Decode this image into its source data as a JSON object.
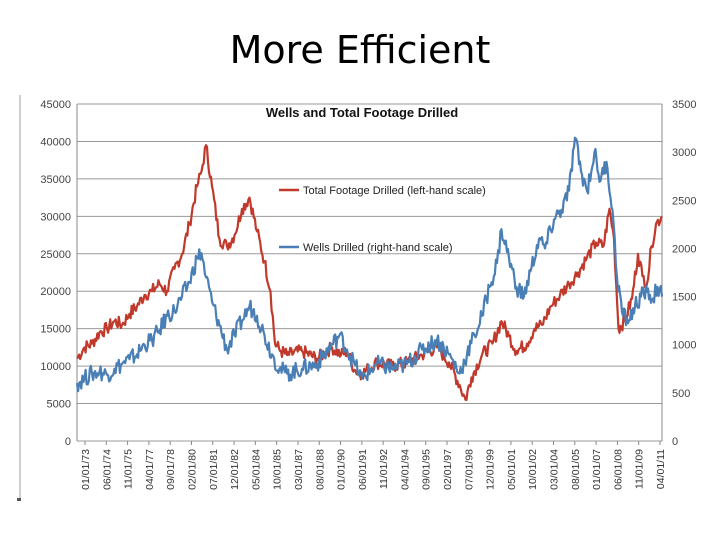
{
  "slide": {
    "title": "More Efficient"
  },
  "chart_data": {
    "type": "line",
    "title": "Wells and Total Footage Drilled",
    "x_tick_labels": [
      "01/01/73",
      "06/01/74",
      "11/01/75",
      "04/01/77",
      "09/01/78",
      "02/01/80",
      "07/01/81",
      "12/01/82",
      "05/01/84",
      "10/01/85",
      "03/01/87",
      "08/01/88",
      "01/01/90",
      "06/01/91",
      "11/01/92",
      "04/01/94",
      "09/01/95",
      "02/01/97",
      "07/01/98",
      "12/01/99",
      "05/01/01",
      "10/01/02",
      "03/01/04",
      "08/01/05",
      "01/01/07",
      "06/01/08",
      "11/01/09",
      "04/01/11"
    ],
    "x_range": [
      1973.0,
      2012.0
    ],
    "left_axis": {
      "range": [
        0,
        45000
      ],
      "ticks": [
        "0",
        "5000",
        "10000",
        "15000",
        "20000",
        "25000",
        "30000",
        "35000",
        "40000",
        "45000"
      ]
    },
    "right_axis": {
      "range": [
        0,
        3500
      ],
      "ticks": [
        "0",
        "500",
        "1000",
        "1500",
        "2000",
        "2500",
        "3000",
        "3500"
      ]
    },
    "series": [
      {
        "name": "Total Footage Drilled (left-hand scale)",
        "axis": "left",
        "color": "#c0392b",
        "points": [
          [
            1973.0,
            11000
          ],
          [
            1973.5,
            12500
          ],
          [
            1974.0,
            13000
          ],
          [
            1974.5,
            14500
          ],
          [
            1975.0,
            15000
          ],
          [
            1975.5,
            16000
          ],
          [
            1976.0,
            15500
          ],
          [
            1976.5,
            17000
          ],
          [
            1977.0,
            18000
          ],
          [
            1977.5,
            19500
          ],
          [
            1978.0,
            20000
          ],
          [
            1978.5,
            21000
          ],
          [
            1979.0,
            20000
          ],
          [
            1979.5,
            23000
          ],
          [
            1980.0,
            25000
          ],
          [
            1980.5,
            29000
          ],
          [
            1981.0,
            34000
          ],
          [
            1981.3,
            36000
          ],
          [
            1981.6,
            39500
          ],
          [
            1982.0,
            34000
          ],
          [
            1982.5,
            27000
          ],
          [
            1983.0,
            26000
          ],
          [
            1983.5,
            27500
          ],
          [
            1984.0,
            31000
          ],
          [
            1984.5,
            32500
          ],
          [
            1985.0,
            28000
          ],
          [
            1985.5,
            24000
          ],
          [
            1985.9,
            20000
          ],
          [
            1986.2,
            13000
          ],
          [
            1986.6,
            12000
          ],
          [
            1987.0,
            11500
          ],
          [
            1988.0,
            12000
          ],
          [
            1989.0,
            11000
          ],
          [
            1990.0,
            12500
          ],
          [
            1990.6,
            11500
          ],
          [
            1991.0,
            12000
          ],
          [
            1991.5,
            9500
          ],
          [
            1992.0,
            9000
          ],
          [
            1993.0,
            10500
          ],
          [
            1994.0,
            10000
          ],
          [
            1995.0,
            10500
          ],
          [
            1996.0,
            11500
          ],
          [
            1997.0,
            12500
          ],
          [
            1997.8,
            10500
          ],
          [
            1998.5,
            7500
          ],
          [
            1998.9,
            5500
          ],
          [
            1999.3,
            8500
          ],
          [
            2000.0,
            11500
          ],
          [
            2000.7,
            13000
          ],
          [
            2001.3,
            16000
          ],
          [
            2001.8,
            14000
          ],
          [
            2002.3,
            12000
          ],
          [
            2003.0,
            13000
          ],
          [
            2003.5,
            15000
          ],
          [
            2004.0,
            15500
          ],
          [
            2004.6,
            18000
          ],
          [
            2005.2,
            19500
          ],
          [
            2005.8,
            21000
          ],
          [
            2006.4,
            22500
          ],
          [
            2007.0,
            24500
          ],
          [
            2007.6,
            26500
          ],
          [
            2008.1,
            26000
          ],
          [
            2008.5,
            31000
          ],
          [
            2008.8,
            27000
          ],
          [
            2009.1,
            15000
          ],
          [
            2009.5,
            16000
          ],
          [
            2010.0,
            19000
          ],
          [
            2010.4,
            25000
          ],
          [
            2010.7,
            22000
          ],
          [
            2011.0,
            21000
          ],
          [
            2011.3,
            26000
          ],
          [
            2011.6,
            29000
          ],
          [
            2012.0,
            30000
          ]
        ]
      },
      {
        "name": "Wells Drilled (right-hand scale)",
        "axis": "right",
        "color": "#4a7fb5",
        "points": [
          [
            1973.0,
            600
          ],
          [
            1973.5,
            650
          ],
          [
            1974.0,
            700
          ],
          [
            1974.5,
            720
          ],
          [
            1975.0,
            690
          ],
          [
            1975.5,
            750
          ],
          [
            1976.0,
            800
          ],
          [
            1976.5,
            850
          ],
          [
            1977.0,
            900
          ],
          [
            1977.5,
            1000
          ],
          [
            1978.0,
            1050
          ],
          [
            1978.5,
            1150
          ],
          [
            1979.0,
            1300
          ],
          [
            1979.5,
            1350
          ],
          [
            1980.0,
            1500
          ],
          [
            1980.5,
            1650
          ],
          [
            1981.0,
            1900
          ],
          [
            1981.3,
            1950
          ],
          [
            1981.6,
            1700
          ],
          [
            1982.0,
            1450
          ],
          [
            1982.5,
            1200
          ],
          [
            1983.0,
            950
          ],
          [
            1983.5,
            1100
          ],
          [
            1984.0,
            1250
          ],
          [
            1984.5,
            1400
          ],
          [
            1985.0,
            1300
          ],
          [
            1985.5,
            1100
          ],
          [
            1986.0,
            900
          ],
          [
            1986.5,
            750
          ],
          [
            1987.0,
            700
          ],
          [
            1988.0,
            750
          ],
          [
            1989.0,
            800
          ],
          [
            1990.0,
            1000
          ],
          [
            1990.5,
            1100
          ],
          [
            1991.0,
            950
          ],
          [
            1991.5,
            800
          ],
          [
            1992.0,
            650
          ],
          [
            1993.0,
            800
          ],
          [
            1994.0,
            750
          ],
          [
            1995.0,
            800
          ],
          [
            1996.0,
            950
          ],
          [
            1997.0,
            1050
          ],
          [
            1997.8,
            900
          ],
          [
            1998.5,
            700
          ],
          [
            1999.0,
            900
          ],
          [
            1999.5,
            1100
          ],
          [
            2000.0,
            1300
          ],
          [
            2000.5,
            1600
          ],
          [
            2001.0,
            1850
          ],
          [
            2001.3,
            2200
          ],
          [
            2001.8,
            1900
          ],
          [
            2002.3,
            1600
          ],
          [
            2002.8,
            1500
          ],
          [
            2003.3,
            1800
          ],
          [
            2003.8,
            2100
          ],
          [
            2004.2,
            2000
          ],
          [
            2004.8,
            2300
          ],
          [
            2005.3,
            2400
          ],
          [
            2005.8,
            2600
          ],
          [
            2006.2,
            3150
          ],
          [
            2006.6,
            2800
          ],
          [
            2007.0,
            2600
          ],
          [
            2007.5,
            3000
          ],
          [
            2007.9,
            2700
          ],
          [
            2008.3,
            2900
          ],
          [
            2008.7,
            2400
          ],
          [
            2009.0,
            1700
          ],
          [
            2009.4,
            1300
          ],
          [
            2009.8,
            1250
          ],
          [
            2010.2,
            1400
          ],
          [
            2010.6,
            1500
          ],
          [
            2011.0,
            1550
          ],
          [
            2011.4,
            1480
          ],
          [
            2011.7,
            1600
          ],
          [
            2012.0,
            1500
          ]
        ]
      }
    ]
  }
}
